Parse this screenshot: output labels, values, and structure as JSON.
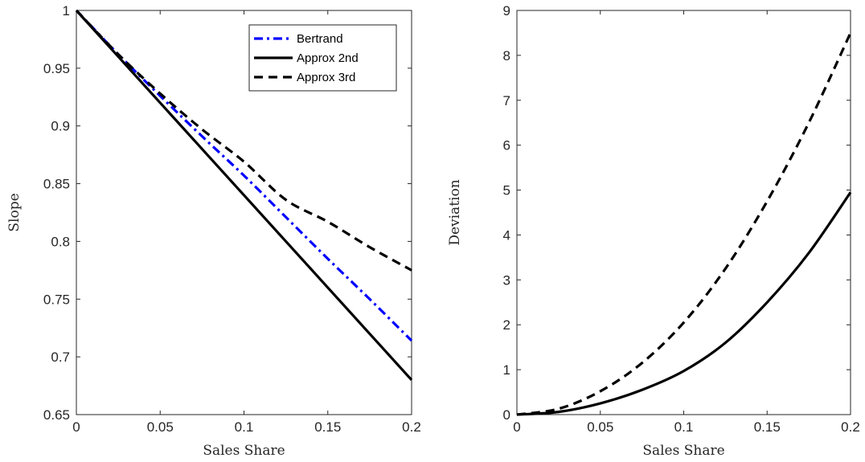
{
  "chart_data": [
    {
      "type": "line",
      "title": "",
      "xlabel": "Sales Share",
      "ylabel": "Slope",
      "xlim": [
        0,
        0.2
      ],
      "ylim": [
        0.65,
        1
      ],
      "xticks": [
        0,
        0.05,
        0.1,
        0.15,
        0.2
      ],
      "xtick_labels": [
        "0",
        "0.05",
        "0.1",
        "0.15",
        "0.2"
      ],
      "yticks": [
        0.65,
        0.7,
        0.75,
        0.8,
        0.85,
        0.9,
        0.95,
        1
      ],
      "ytick_labels": [
        "0.65",
        "0.7",
        "0.75",
        "0.8",
        "0.85",
        "0.9",
        "0.95",
        "1"
      ],
      "grid": false,
      "legend_position": "top-right",
      "x": [
        0,
        0.025,
        0.05,
        0.075,
        0.1,
        0.125,
        0.15,
        0.175,
        0.2
      ],
      "series": [
        {
          "name": "Bertrand",
          "color": "#0000ff",
          "style": "dashdot",
          "values": [
            1,
            0.962,
            0.926,
            0.891,
            0.857,
            0.821,
            0.785,
            0.75,
            0.714
          ]
        },
        {
          "name": "Approx 2nd",
          "color": "#000000",
          "style": "solid",
          "values": [
            1,
            0.96,
            0.92,
            0.88,
            0.84,
            0.8,
            0.76,
            0.72,
            0.68
          ]
        },
        {
          "name": "Approx 3rd",
          "color": "#000000",
          "style": "dashed",
          "values": [
            1,
            0.962,
            0.928,
            0.897,
            0.869,
            0.836,
            0.817,
            0.795,
            0.775
          ]
        }
      ]
    },
    {
      "type": "line",
      "title": "",
      "xlabel": "Sales Share",
      "ylabel": "Deviation",
      "xlim": [
        0,
        0.2
      ],
      "ylim": [
        0,
        9
      ],
      "xticks": [
        0,
        0.05,
        0.1,
        0.15,
        0.2
      ],
      "xtick_labels": [
        "0",
        "0.05",
        "0.1",
        "0.15",
        "0.2"
      ],
      "yticks": [
        0,
        1,
        2,
        3,
        4,
        5,
        6,
        7,
        8,
        9
      ],
      "ytick_labels": [
        "0",
        "1",
        "2",
        "3",
        "4",
        "5",
        "6",
        "7",
        "8",
        "9"
      ],
      "grid": false,
      "x": [
        0,
        0.025,
        0.05,
        0.075,
        0.1,
        0.125,
        0.15,
        0.175,
        0.2
      ],
      "series": [
        {
          "color": "#000000",
          "style": "solid",
          "values": [
            0,
            0.06,
            0.25,
            0.55,
            0.97,
            1.6,
            2.5,
            3.6,
            4.95
          ]
        },
        {
          "color": "#000000",
          "style": "dashed",
          "values": [
            0,
            0.13,
            0.52,
            1.15,
            2.05,
            3.25,
            4.75,
            6.5,
            8.5
          ]
        }
      ]
    }
  ]
}
